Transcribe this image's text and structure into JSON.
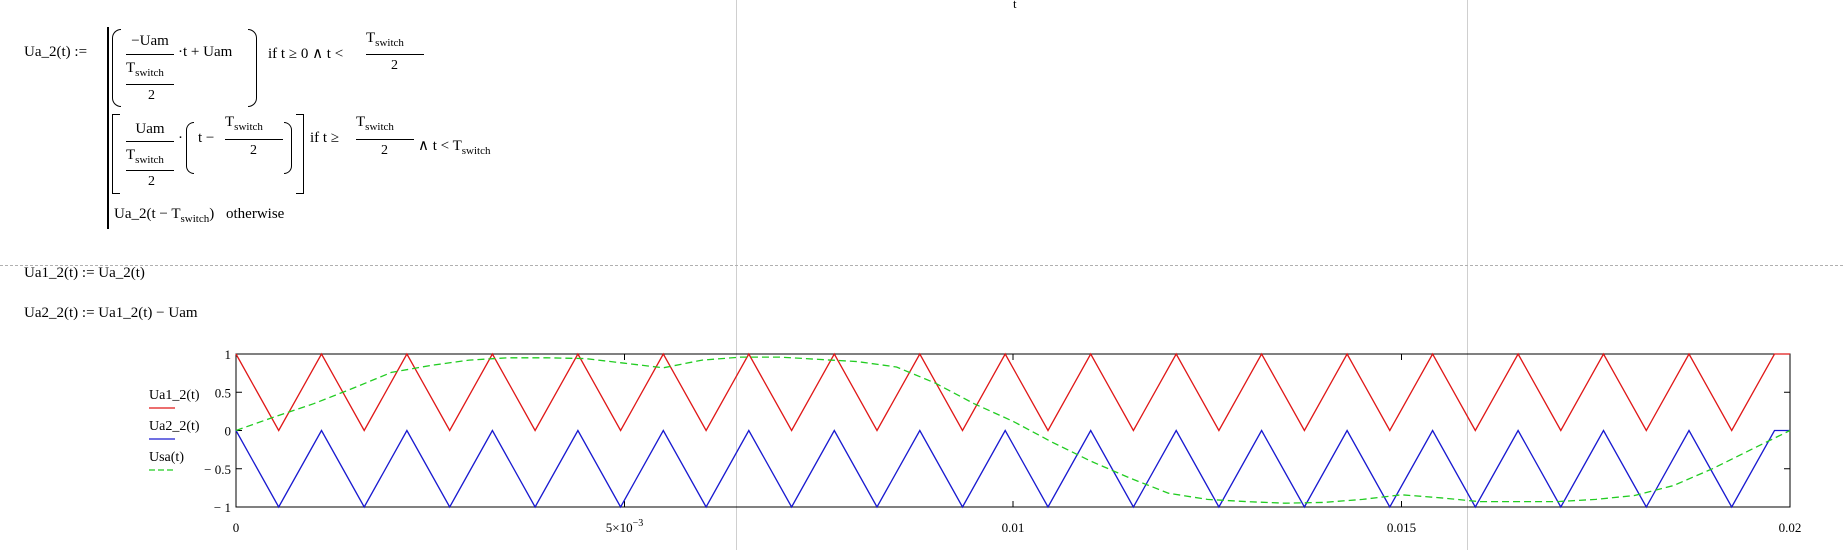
{
  "top_marker": "t",
  "definition": {
    "lhs": "Ua_2(t) :=",
    "case1": {
      "num": "−Uam",
      "den_T": "T",
      "den_sub": "switch",
      "den_2": "2",
      "tail": "·t + Uam",
      "cond_prefix": "if  t ≥ 0 ∧ t <",
      "cond_T": "T",
      "cond_sub": "switch",
      "cond_2": "2"
    },
    "case2": {
      "num": "Uam",
      "den_T": "T",
      "den_sub": "switch",
      "den_2": "2",
      "mid": "·",
      "paren_t": "t −",
      "paren_T": "T",
      "paren_sub": "switch",
      "paren_2": "2",
      "cond_prefix": "if  t ≥",
      "cond_T": "T",
      "cond_sub": "switch",
      "cond_2": "2",
      "cond_tail": "∧ t < T",
      "cond_tail_sub": "switch"
    },
    "case3": {
      "text": "Ua_2(t − T",
      "sub": "switch",
      "close": ")",
      "otherwise": "otherwise"
    }
  },
  "eq_ua1": "Ua1_2(t) := Ua_2(t)",
  "eq_ua2": "Ua2_2(t) := Ua1_2(t) − Uam",
  "plot_labels": {
    "legend": [
      "Ua1_2(t)",
      "Ua2_2(t)",
      "Usa(t)"
    ],
    "y_ticks": [
      "1",
      "0.5",
      "0",
      "− 0.5",
      "− 1"
    ],
    "x_ticks": [
      "0",
      "5×10",
      "0.01",
      "0.015",
      "0.02"
    ],
    "x_tick_exp": "−3"
  },
  "colors": {
    "ua1": "#e01818",
    "ua2": "#1a1ad0",
    "usa": "#22cc22"
  },
  "chart_data": {
    "type": "line",
    "xlim": [
      0,
      0.02
    ],
    "ylim": [
      -1,
      1
    ],
    "grid": false,
    "legend_placement": "left",
    "series": [
      {
        "name": "Ua1_2(t)",
        "x": [
          0,
          0.00055,
          0.0011,
          0.00165,
          0.0022,
          0.00275,
          0.0033,
          0.00385,
          0.0044,
          0.00495,
          0.0055,
          0.00605,
          0.0066,
          0.00715,
          0.0077,
          0.00825,
          0.0088,
          0.00935,
          0.0099,
          0.01045,
          0.011,
          0.01155,
          0.0121,
          0.01265,
          0.0132,
          0.01375,
          0.0143,
          0.01485,
          0.0154,
          0.01595,
          0.0165,
          0.01705,
          0.0176,
          0.01815,
          0.0187,
          0.01925,
          0.0198,
          0.02
        ],
        "y": [
          1,
          0,
          1,
          0,
          1,
          0,
          1,
          0,
          1,
          0,
          1,
          0,
          1,
          0,
          1,
          0,
          1,
          0,
          1,
          0,
          1,
          0,
          1,
          0,
          1,
          0,
          1,
          0,
          1,
          0,
          1,
          0,
          1,
          0,
          1,
          0,
          1,
          1
        ]
      },
      {
        "name": "Ua2_2(t)",
        "x": [
          0,
          0.00055,
          0.0011,
          0.00165,
          0.0022,
          0.00275,
          0.0033,
          0.00385,
          0.0044,
          0.00495,
          0.0055,
          0.00605,
          0.0066,
          0.00715,
          0.0077,
          0.00825,
          0.0088,
          0.00935,
          0.0099,
          0.01045,
          0.011,
          0.01155,
          0.0121,
          0.01265,
          0.0132,
          0.01375,
          0.0143,
          0.01485,
          0.0154,
          0.01595,
          0.0165,
          0.01705,
          0.0176,
          0.01815,
          0.0187,
          0.01925,
          0.0198,
          0.02
        ],
        "y": [
          0,
          -1,
          0,
          -1,
          0,
          -1,
          0,
          -1,
          0,
          -1,
          0,
          -1,
          0,
          -1,
          0,
          -1,
          0,
          -1,
          0,
          -1,
          0,
          -1,
          0,
          -1,
          0,
          -1,
          0,
          -1,
          0,
          -1,
          0,
          -1,
          0,
          -1,
          0,
          -1,
          0,
          0
        ]
      },
      {
        "name": "Usa(t)",
        "x": [
          0,
          0.0005,
          0.001,
          0.0015,
          0.002,
          0.0025,
          0.003,
          0.0035,
          0.004,
          0.0045,
          0.005,
          0.0055,
          0.006,
          0.0065,
          0.007,
          0.0075,
          0.008,
          0.0085,
          0.009,
          0.0095,
          0.01,
          0.0105,
          0.011,
          0.0115,
          0.012,
          0.0125,
          0.013,
          0.0135,
          0.014,
          0.0145,
          0.015,
          0.0155,
          0.016,
          0.0165,
          0.017,
          0.0175,
          0.018,
          0.0185,
          0.019,
          0.0195,
          0.02
        ],
        "y": [
          0,
          0.18,
          0.35,
          0.55,
          0.76,
          0.85,
          0.92,
          0.95,
          0.95,
          0.94,
          0.88,
          0.82,
          0.92,
          0.96,
          0.96,
          0.93,
          0.9,
          0.83,
          0.62,
          0.35,
          0.12,
          -0.15,
          -0.4,
          -0.62,
          -0.82,
          -0.9,
          -0.93,
          -0.95,
          -0.94,
          -0.9,
          -0.84,
          -0.88,
          -0.93,
          -0.93,
          -0.93,
          -0.9,
          -0.85,
          -0.72,
          -0.5,
          -0.25,
          0
        ]
      }
    ]
  }
}
